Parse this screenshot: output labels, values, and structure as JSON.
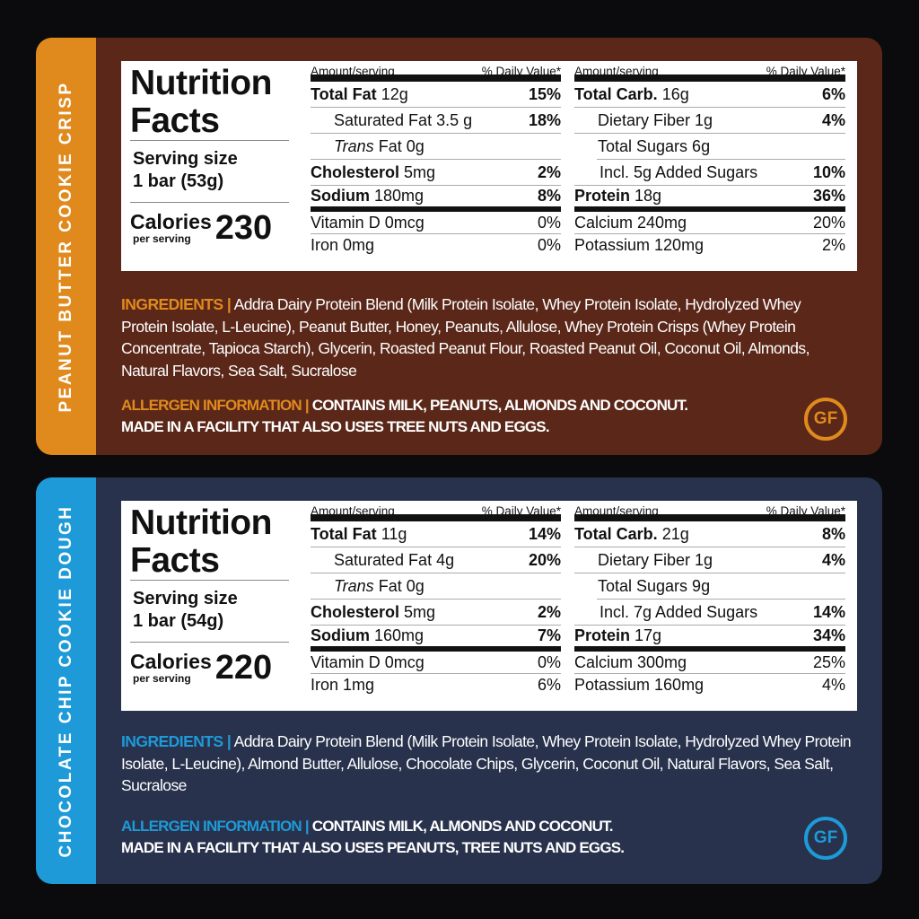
{
  "products": [
    {
      "name": "PEANUT BUTTER COOKIE CRISP",
      "accent": "#e08a1e",
      "background": "#5a2718",
      "title": "Nutrition Facts",
      "serving_label": "Serving size",
      "serving_size": "1 bar (53g)",
      "calories_label": "Calories",
      "calories_sub": "per serving",
      "calories": "230",
      "header_amount": "Amount/serving",
      "header_dv": "% Daily Value*",
      "left_rows": [
        {
          "label": "Total Fat",
          "amount": "12g",
          "dv": "15%",
          "type": "bold"
        },
        {
          "label": "Saturated Fat 3.5 g",
          "amount": "",
          "dv": "18%",
          "type": "sub"
        },
        {
          "italic": "Trans",
          "label": "Fat",
          "amount": "0g",
          "dv": "",
          "type": "sub"
        },
        {
          "label": "Cholesterol",
          "amount": "5mg",
          "dv": "2%",
          "type": "bold"
        },
        {
          "label": "Sodium",
          "amount": "180mg",
          "dv": "8%",
          "type": "bold"
        }
      ],
      "right_rows": [
        {
          "label": "Total Carb.",
          "amount": "16g",
          "dv": "6%",
          "type": "bold"
        },
        {
          "label": "Dietary Fiber 1g",
          "amount": "",
          "dv": "4%",
          "type": "sub"
        },
        {
          "label": "Total Sugars 6g",
          "amount": "",
          "dv": "",
          "type": "sub"
        },
        {
          "label": "Incl. 5g Added Sugars",
          "amount": "",
          "dv": "10%",
          "type": "sub2"
        },
        {
          "label": "Protein",
          "amount": "18g",
          "dv": "36%",
          "type": "bold"
        }
      ],
      "left_micros": [
        {
          "label": "Vitamin D 0mcg",
          "dv": "0%"
        },
        {
          "label": "Iron 0mg",
          "dv": "0%"
        }
      ],
      "right_micros": [
        {
          "label": "Calcium 240mg",
          "dv": "20%"
        },
        {
          "label": "Potassium 120mg",
          "dv": "2%"
        }
      ],
      "ingredients_label": "INGREDIENTS |",
      "ingredients": "Addra Dairy Protein Blend (Milk Protein Isolate, Whey Protein Isolate, Hydrolyzed Whey Protein Isolate, L-Leucine), Peanut Butter, Honey, Peanuts, Allulose, Whey Protein Crisps (Whey Protein Concentrate, Tapioca Starch), Glycerin, Roasted Peanut Flour, Roasted Peanut Oil, Coconut Oil, Almonds, Natural Flavors, Sea Salt, Sucralose",
      "allergen_label": "ALLERGEN INFORMATION |",
      "allergen_line1": "CONTAINS MILK, PEANUTS, ALMONDS AND COCONUT.",
      "allergen_line2": "MADE IN A FACILITY THAT ALSO USES TREE NUTS AND EGGS.",
      "badge": "GF"
    },
    {
      "name": "CHOCOLATE CHIP COOKIE DOUGH",
      "accent": "#1e9ad8",
      "background": "#28324c",
      "title": "Nutrition Facts",
      "serving_label": "Serving size",
      "serving_size": "1 bar (54g)",
      "calories_label": "Calories",
      "calories_sub": "per serving",
      "calories": "220",
      "header_amount": "Amount/serving",
      "header_dv": "% Daily Value*",
      "left_rows": [
        {
          "label": "Total Fat",
          "amount": "11g",
          "dv": "14%",
          "type": "bold"
        },
        {
          "label": "Saturated Fat 4g",
          "amount": "",
          "dv": "20%",
          "type": "sub"
        },
        {
          "italic": "Trans",
          "label": "Fat",
          "amount": "0g",
          "dv": "",
          "type": "sub"
        },
        {
          "label": "Cholesterol",
          "amount": "5mg",
          "dv": "2%",
          "type": "bold"
        },
        {
          "label": "Sodium",
          "amount": "160mg",
          "dv": "7%",
          "type": "bold"
        }
      ],
      "right_rows": [
        {
          "label": "Total Carb.",
          "amount": "21g",
          "dv": "8%",
          "type": "bold"
        },
        {
          "label": "Dietary Fiber 1g",
          "amount": "",
          "dv": "4%",
          "type": "sub"
        },
        {
          "label": "Total Sugars 9g",
          "amount": "",
          "dv": "",
          "type": "sub"
        },
        {
          "label": "Incl. 7g Added Sugars",
          "amount": "",
          "dv": "14%",
          "type": "sub2"
        },
        {
          "label": "Protein",
          "amount": "17g",
          "dv": "34%",
          "type": "bold"
        }
      ],
      "left_micros": [
        {
          "label": "Vitamin D 0mcg",
          "dv": "0%"
        },
        {
          "label": "Iron 1mg",
          "dv": "6%"
        }
      ],
      "right_micros": [
        {
          "label": "Calcium 300mg",
          "dv": "25%"
        },
        {
          "label": "Potassium 160mg",
          "dv": "4%"
        }
      ],
      "ingredients_label": "INGREDIENTS |",
      "ingredients": "Addra Dairy Protein Blend (Milk Protein Isolate, Whey Protein Isolate, Hydrolyzed Whey Protein Isolate, L-Leucine), Almond Butter, Allulose, Chocolate Chips, Glycerin, Coconut Oil, Natural Flavors, Sea Salt, Sucralose",
      "allergen_label": "ALLERGEN INFORMATION |",
      "allergen_line1": "CONTAINS MILK, ALMONDS AND COCONUT.",
      "allergen_line2": "MADE IN A FACILITY THAT ALSO USES PEANUTS, TREE NUTS AND EGGS.",
      "badge": "GF"
    }
  ]
}
